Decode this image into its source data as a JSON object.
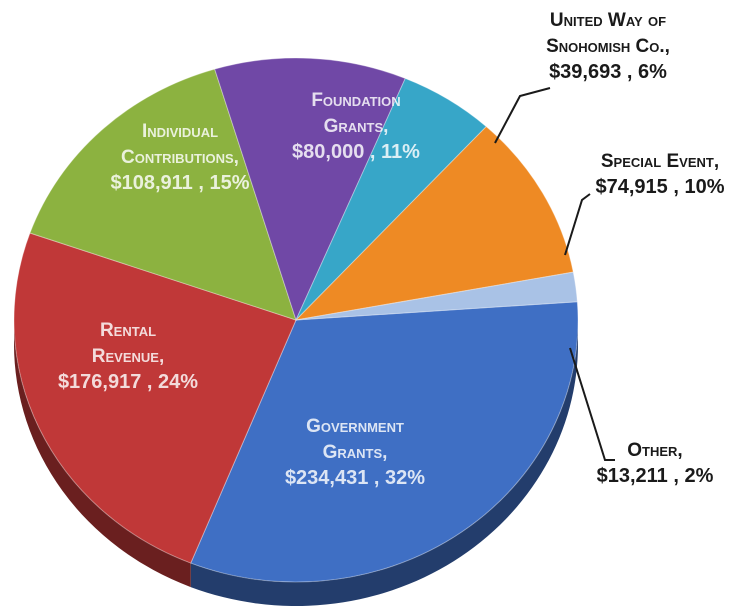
{
  "chart_data": {
    "type": "pie",
    "title": "",
    "slices": [
      {
        "label": "Government Grants",
        "label_lines": [
          "Government",
          "Grants,"
        ],
        "value": 234431,
        "value_text": "$234,431 , 32%",
        "percent": 32,
        "color": "#3f6fc4"
      },
      {
        "label": "Rental Revenue",
        "label_lines": [
          "Rental",
          "Revenue,"
        ],
        "value": 176917,
        "value_text": "$176,917 , 24%",
        "percent": 24,
        "color": "#c03838"
      },
      {
        "label": "Individual Contributions",
        "label_lines": [
          "Individual",
          "Contributions,"
        ],
        "value": 108911,
        "value_text": "$108,911 , 15%",
        "percent": 15,
        "color": "#8cb240"
      },
      {
        "label": "Foundation Grants",
        "label_lines": [
          "Foundation",
          "Grants,"
        ],
        "value": 80000,
        "value_text": "$80,000 , 11%",
        "percent": 11,
        "color": "#7048a6"
      },
      {
        "label": "United Way of Snohomish Co.",
        "label_lines": [
          "United Way of",
          "Snohomish Co.,"
        ],
        "value": 39693,
        "value_text": "$39,693 , 6%",
        "percent": 6,
        "color": "#37a6c8"
      },
      {
        "label": "Special Event",
        "label_lines": [
          "Special Event,"
        ],
        "value": 74915,
        "value_text": "$74,915 , 10%",
        "percent": 10,
        "color": "#ee8a24"
      },
      {
        "label": "Other",
        "label_lines": [
          "Other,"
        ],
        "value": 13211,
        "value_text": "$13,211 , 2%",
        "percent": 2,
        "color": "#a9c2e6"
      }
    ]
  }
}
